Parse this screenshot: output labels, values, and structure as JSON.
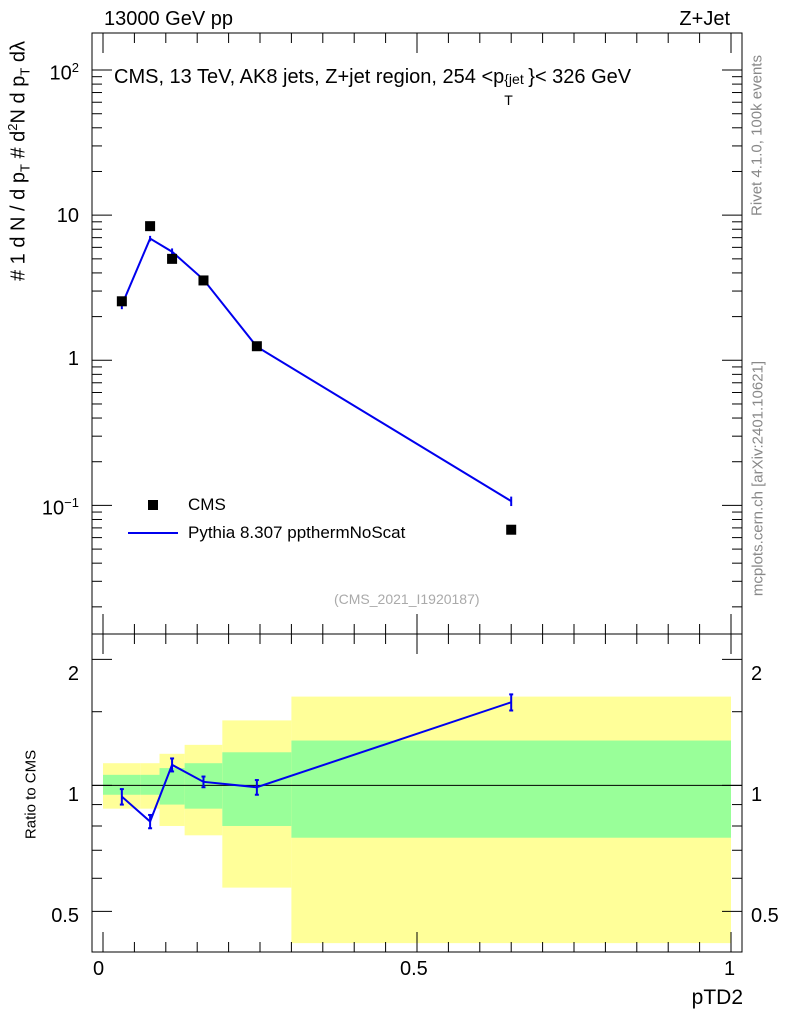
{
  "header": {
    "energy_label": "13000 GeV pp",
    "process_label": "Z+Jet"
  },
  "side_labels": {
    "rivet": "Rivet 4.1.0,  100k events",
    "site": "mcplots.cern.ch [arXiv:2401.10621]"
  },
  "chart_data": {
    "type": "line",
    "title": "CMS, 13 TeV, AK8 jets, Z+jet region, 254 <p_T^{jet}< 326 GeV",
    "title_parts": {
      "main": "CMS, 13 TeV, AK8 jets, Z+jet region, 254 <p",
      "sub": "T",
      "sup": "{jet",
      "sup_close": "}",
      "tail": "< 326 GeV"
    },
    "analysis_id": "(CMS_2021_I1920187)",
    "xlabel": "pTD2",
    "ylabel": "# 1/(dN/dp_T#) d²N/(dp_T dλ)",
    "ylabel_parts": {
      "hash1": "#",
      "one": "1",
      "den": "d N / d p",
      "den_sub": "T",
      "hash2": "#",
      "num": "d",
      "num_sup": "2",
      "num_tail": "N",
      "den2": "d p",
      "den2_sub": "T",
      "den2_tail": " dλ"
    },
    "xlim": [
      0,
      1
    ],
    "ylim": [
      0.013,
      180
    ],
    "yscale": "log",
    "x_ticks": [
      0,
      0.5,
      1
    ],
    "x_tick_labels": [
      "0",
      "0.5",
      "1"
    ],
    "y_ticks": [
      0.1,
      1,
      10,
      100
    ],
    "y_tick_labels": [
      {
        "base": "10",
        "exp": "−1"
      },
      {
        "base": "1",
        "exp": ""
      },
      {
        "base": "10",
        "exp": ""
      },
      {
        "base": "10",
        "exp": "2"
      }
    ],
    "legend": [
      {
        "name": "CMS",
        "marker": "square",
        "color": "#000000"
      },
      {
        "name": "Pythia 8.307 ppthermNoScat",
        "marker": "line",
        "color": "#0000ee"
      }
    ],
    "legend_position": "lower-left",
    "data": {
      "name": "CMS",
      "x": [
        0.03,
        0.075,
        0.11,
        0.16,
        0.245,
        0.65
      ],
      "y": [
        2.55,
        8.4,
        5.0,
        3.55,
        1.25,
        0.068
      ]
    },
    "mc": {
      "name": "Pythia 8.307 ppthermNoScat",
      "color": "#0000ee",
      "x": [
        0.03,
        0.075,
        0.11,
        0.16,
        0.245,
        0.65
      ],
      "y": [
        2.4,
        6.9,
        5.6,
        3.6,
        1.24,
        0.107
      ],
      "yerr": [
        0.15,
        0.3,
        0.3,
        0.12,
        0.04,
        0.008
      ]
    },
    "ratio": {
      "ylabel": "Ratio to CMS",
      "ylim": [
        0.4,
        2.3
      ],
      "y_ticks": [
        0.5,
        1,
        2
      ],
      "y_tick_labels": [
        "0.5",
        "1",
        "2"
      ],
      "mc_values": [
        0.94,
        0.82,
        1.12,
        1.02,
        0.99,
        1.58
      ],
      "mc_errors": [
        0.04,
        0.03,
        0.04,
        0.03,
        0.04,
        0.07
      ],
      "bands": {
        "edges": [
          0,
          0.06,
          0.09,
          0.13,
          0.19,
          0.3,
          1.0
        ],
        "green_low": [
          0.95,
          0.95,
          0.9,
          0.88,
          0.8,
          0.75
        ],
        "green_high": [
          1.06,
          1.06,
          1.1,
          1.13,
          1.2,
          1.28
        ],
        "yellow_low": [
          0.88,
          0.88,
          0.8,
          0.76,
          0.57,
          0.42
        ],
        "yellow_high": [
          1.13,
          1.13,
          1.19,
          1.25,
          1.43,
          1.63
        ]
      }
    }
  }
}
